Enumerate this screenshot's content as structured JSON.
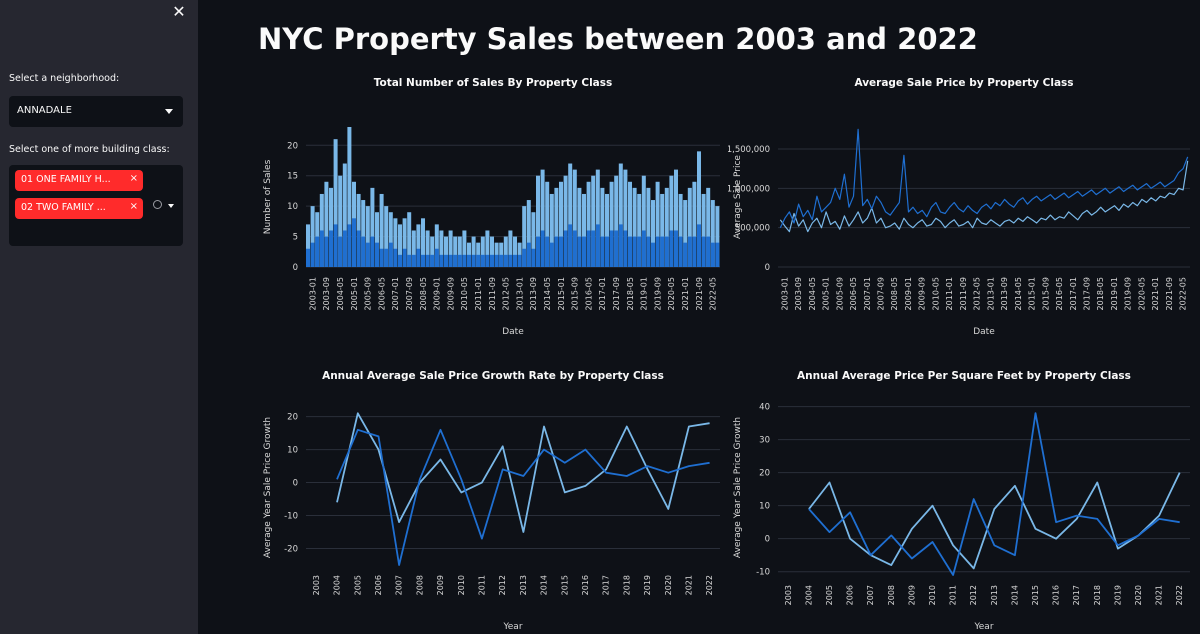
{
  "sidebar": {
    "close_icon": "close-icon",
    "neighborhood_label": "Select a neighborhood:",
    "neighborhood_value": "ANNADALE",
    "building_label": "Select one of more building class:",
    "tags": [
      {
        "label": "01 ONE FAMILY H...",
        "remove": "×"
      },
      {
        "label": "02 TWO FAMILY ...",
        "remove": "×"
      }
    ]
  },
  "page": {
    "title": "NYC Property Sales between 2003 and 2022"
  },
  "colors": {
    "background": "#0e1117",
    "sidebar": "#262730",
    "tag": "#ff2b2b",
    "series_light": "#7ab8e8",
    "series_dark": "#1f6fd1"
  },
  "chart_data": [
    {
      "type": "bar",
      "title": "Total Number of Sales By Property Class",
      "xlabel": "Date",
      "ylabel": "Number of Sales",
      "ylim": [
        0,
        23
      ],
      "yticks": [
        0,
        5,
        10,
        15,
        20
      ],
      "xticks": [
        "2003-01",
        "2003-09",
        "2004-05",
        "2005-01",
        "2005-09",
        "2006-05",
        "2007-01",
        "2007-09",
        "2008-05",
        "2009-01",
        "2009-09",
        "2010-05",
        "2011-01",
        "2011-09",
        "2012-05",
        "2013-01",
        "2013-09",
        "2014-05",
        "2015-01",
        "2015-09",
        "2016-05",
        "2017-01",
        "2017-09",
        "2018-05",
        "2019-01",
        "2019-09",
        "2020-05",
        "2021-01",
        "2021-09",
        "2022-05"
      ],
      "series": [
        {
          "values": [
            7,
            10,
            9,
            12,
            14,
            13,
            21,
            15,
            17,
            23,
            14,
            12,
            11,
            10,
            13,
            9,
            12,
            10,
            9,
            8,
            7,
            8,
            9,
            6,
            7,
            8,
            6,
            5,
            7,
            6,
            5,
            6,
            5,
            5,
            6,
            4,
            5,
            4,
            5,
            6,
            5,
            4,
            4,
            5,
            6,
            5,
            4,
            10,
            11,
            9,
            15,
            16,
            14,
            12,
            13,
            14,
            15,
            17,
            16,
            13,
            12,
            14,
            15,
            16,
            13,
            12,
            14,
            15,
            17,
            16,
            14,
            13,
            12,
            15,
            13,
            11,
            14,
            12,
            13,
            15,
            16,
            12,
            11,
            13,
            14,
            19,
            12,
            13,
            11,
            10
          ]
        },
        {
          "values": [
            3,
            4,
            5,
            6,
            5,
            6,
            7,
            5,
            6,
            7,
            8,
            6,
            5,
            4,
            5,
            4,
            3,
            3,
            4,
            3,
            2,
            3,
            2,
            2,
            3,
            2,
            2,
            2,
            3,
            2,
            2,
            2,
            2,
            2,
            2,
            2,
            2,
            2,
            2,
            2,
            2,
            2,
            2,
            2,
            2,
            2,
            2,
            3,
            4,
            3,
            5,
            6,
            5,
            4,
            5,
            5,
            6,
            7,
            6,
            5,
            5,
            6,
            6,
            7,
            5,
            5,
            6,
            6,
            7,
            6,
            5,
            5,
            5,
            6,
            5,
            4,
            5,
            5,
            5,
            6,
            6,
            5,
            4,
            5,
            5,
            7,
            5,
            5,
            4,
            4
          ]
        }
      ]
    },
    {
      "type": "line",
      "title": "Average Sale Price by Property Class",
      "xlabel": "Date",
      "ylabel": "Average Sale Price",
      "ylim": [
        0,
        1780000
      ],
      "yticks": [
        "0",
        "500,000",
        "1,000,000",
        "1,500,000"
      ],
      "xticks": [
        "2003-01",
        "2003-09",
        "2004-05",
        "2005-01",
        "2005-09",
        "2006-05",
        "2007-01",
        "2007-09",
        "2008-05",
        "2009-01",
        "2009-09",
        "2010-05",
        "2011-01",
        "2011-09",
        "2012-05",
        "2013-01",
        "2013-09",
        "2014-05",
        "2015-01",
        "2015-09",
        "2016-05",
        "2017-01",
        "2017-09",
        "2018-05",
        "2019-01",
        "2019-09",
        "2020-05",
        "2021-01",
        "2021-09",
        "2022-05"
      ],
      "series": [
        {
          "values": [
            600000,
            520000,
            450000,
            680000,
            520000,
            600000,
            450000,
            560000,
            620000,
            500000,
            700000,
            540000,
            580000,
            480000,
            650000,
            520000,
            600000,
            700000,
            560000,
            620000,
            750000,
            560000,
            620000,
            500000,
            520000,
            560000,
            480000,
            620000,
            540000,
            500000,
            560000,
            600000,
            520000,
            540000,
            620000,
            580000,
            500000,
            560000,
            600000,
            520000,
            540000,
            580000,
            500000,
            620000,
            560000,
            540000,
            600000,
            560000,
            520000,
            580000,
            600000,
            560000,
            620000,
            580000,
            640000,
            600000,
            560000,
            620000,
            600000,
            660000,
            600000,
            640000,
            620000,
            700000,
            650000,
            600000,
            680000,
            720000,
            660000,
            700000,
            760000,
            700000,
            740000,
            780000,
            720000,
            800000,
            760000,
            820000,
            780000,
            860000,
            820000,
            880000,
            840000,
            900000,
            880000,
            940000,
            920000,
            1000000,
            980000,
            1350000
          ]
        },
        {
          "values": [
            500000,
            620000,
            700000,
            560000,
            800000,
            640000,
            720000,
            600000,
            900000,
            700000,
            760000,
            820000,
            1000000,
            860000,
            1180000,
            760000,
            900000,
            1750000,
            780000,
            860000,
            740000,
            900000,
            820000,
            700000,
            660000,
            740000,
            820000,
            1420000,
            700000,
            760000,
            680000,
            720000,
            640000,
            760000,
            820000,
            700000,
            680000,
            760000,
            820000,
            740000,
            700000,
            780000,
            720000,
            680000,
            760000,
            800000,
            740000,
            820000,
            780000,
            860000,
            800000,
            760000,
            840000,
            880000,
            800000,
            860000,
            900000,
            840000,
            880000,
            920000,
            860000,
            900000,
            940000,
            880000,
            920000,
            960000,
            900000,
            940000,
            980000,
            920000,
            960000,
            1000000,
            940000,
            980000,
            1020000,
            960000,
            1000000,
            1040000,
            980000,
            1020000,
            1060000,
            1000000,
            1040000,
            1080000,
            1020000,
            1060000,
            1100000,
            1200000,
            1250000,
            1400000
          ]
        }
      ]
    },
    {
      "type": "line",
      "title": "Annual Average Sale Price Growth Rate by Property Class",
      "xlabel": "Year",
      "ylabel": "Average Year Sale Price Growth",
      "ylim": [
        -25,
        22
      ],
      "yticks": [
        -20,
        -10,
        0,
        10,
        20
      ],
      "x": [
        "2003",
        "2004",
        "2005",
        "2006",
        "2007",
        "2008",
        "2009",
        "2010",
        "2011",
        "2012",
        "2013",
        "2014",
        "2015",
        "2016",
        "2017",
        "2018",
        "2019",
        "2020",
        "2021",
        "2022"
      ],
      "series": [
        {
          "values": [
            null,
            -6,
            21,
            10,
            -12,
            0,
            7,
            -3,
            0,
            11,
            -15,
            17,
            -3,
            -1,
            4,
            17,
            4,
            -8,
            17,
            18
          ]
        },
        {
          "values": [
            null,
            1,
            16,
            14,
            -25,
            1,
            16,
            1,
            -17,
            4,
            2,
            10,
            6,
            10,
            3,
            2,
            5,
            3,
            5,
            6
          ]
        }
      ]
    },
    {
      "type": "line",
      "title": "Annual Average Price Per Square Feet by Property Class",
      "xlabel": "Year",
      "ylabel": "Average Year Sale Price Growth",
      "ylim": [
        -11,
        42
      ],
      "yticks": [
        -10,
        0,
        10,
        20,
        30,
        40
      ],
      "x": [
        "2003",
        "2004",
        "2005",
        "2006",
        "2007",
        "2008",
        "2009",
        "2010",
        "2011",
        "2012",
        "2013",
        "2014",
        "2015",
        "2016",
        "2017",
        "2018",
        "2019",
        "2020",
        "2021",
        "2022"
      ],
      "series": [
        {
          "values": [
            null,
            9,
            17,
            0,
            -5,
            -8,
            3,
            10,
            -2,
            -9,
            9,
            16,
            3,
            0,
            6,
            17,
            -3,
            1,
            7,
            20
          ]
        },
        {
          "values": [
            null,
            9,
            2,
            8,
            -5,
            1,
            -6,
            -1,
            -11,
            12,
            -2,
            -5,
            38,
            5,
            7,
            6,
            -2,
            1,
            6,
            5
          ]
        }
      ]
    }
  ]
}
